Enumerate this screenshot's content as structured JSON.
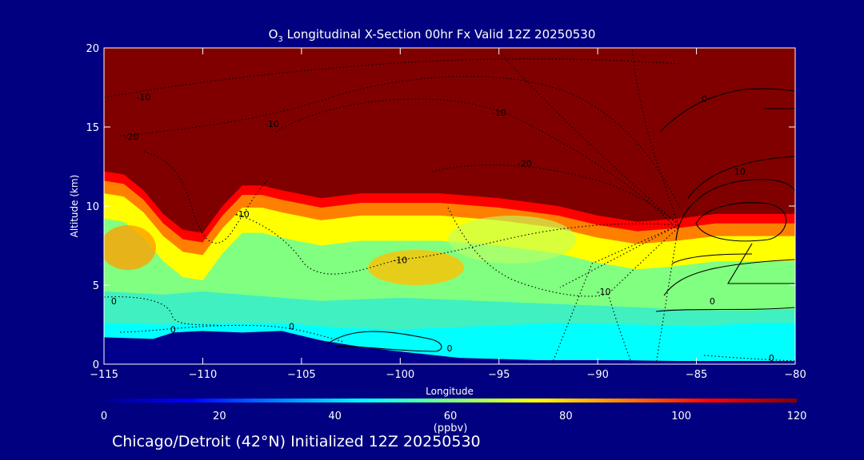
{
  "title": {
    "prefix": "O",
    "sub": "3",
    "rest": " Longitudinal X-Section 00hr  Fx Valid 12Z 20250530"
  },
  "footer": "Chicago/Detroit (42°N) Initialized 12Z 20250530",
  "chart_data": {
    "type": "heatmap",
    "xlabel": "Longitude",
    "ylabel": "Altitude (km)",
    "xlim": [
      -115,
      -80
    ],
    "ylim": [
      0,
      20
    ],
    "xticks": [
      -115,
      -110,
      -105,
      -100,
      -95,
      -90,
      -85,
      -80
    ],
    "xtick_labels": [
      "-115",
      "-110",
      "-105",
      "-100",
      "-95",
      "-90",
      "-85",
      "-80"
    ],
    "yticks": [
      0,
      5,
      10,
      15,
      20
    ],
    "ytick_labels": [
      "0",
      "5",
      "10",
      "15",
      "20"
    ],
    "colorbar": {
      "label": "(ppbv)",
      "min": 0,
      "max": 120,
      "ticks": [
        0,
        20,
        40,
        60,
        80,
        100,
        120
      ],
      "tick_labels": [
        "0",
        "20",
        "40",
        "60",
        "80",
        "100",
        "120"
      ],
      "stops": [
        "#00008c",
        "#0000ff",
        "#0080ff",
        "#00ffff",
        "#80ff80",
        "#ffff00",
        "#ff8000",
        "#ff0000",
        "#800000"
      ]
    },
    "terrain": {
      "lon": [
        -115,
        -112.5,
        -111.5,
        -110,
        -108,
        -106,
        -104,
        -102,
        -100,
        -97,
        -93,
        -89,
        -86,
        -83,
        -80
      ],
      "alt": [
        1.7,
        1.6,
        2.0,
        2.1,
        2.0,
        2.1,
        1.5,
        1.1,
        0.8,
        0.4,
        0.25,
        0.25,
        0.2,
        0.2,
        0.2
      ]
    },
    "tropopause_km": {
      "lon": [
        -115,
        -114,
        -113,
        -112,
        -111,
        -110,
        -109,
        -108,
        -107,
        -106,
        -104,
        -102,
        -100,
        -98,
        -95,
        -92,
        -90,
        -88,
        -86,
        -84,
        -82,
        -80
      ],
      "alt": [
        12.2,
        12.0,
        11.0,
        9.5,
        8.5,
        8.3,
        10.0,
        11.3,
        11.3,
        11.0,
        10.5,
        10.8,
        10.8,
        10.8,
        10.5,
        10.0,
        9.4,
        9.0,
        9.2,
        9.5,
        9.5,
        9.5
      ]
    },
    "contours": {
      "style": "dotted = negative, solid = non-negative",
      "labels": [
        {
          "lon": -113.0,
          "alt": 16.7,
          "text": "-10"
        },
        {
          "lon": -113.6,
          "alt": 14.2,
          "text": "-20"
        },
        {
          "lon": -106.5,
          "alt": 15.0,
          "text": "-10"
        },
        {
          "lon": -95.0,
          "alt": 15.7,
          "text": "-10"
        },
        {
          "lon": -93.7,
          "alt": 12.5,
          "text": "-20"
        },
        {
          "lon": -108.0,
          "alt": 9.3,
          "text": "-10"
        },
        {
          "lon": -100.0,
          "alt": 6.4,
          "text": "-10"
        },
        {
          "lon": -89.7,
          "alt": 4.4,
          "text": "-10"
        },
        {
          "lon": -114.5,
          "alt": 3.8,
          "text": "0"
        },
        {
          "lon": -111.5,
          "alt": 2.0,
          "text": "0"
        },
        {
          "lon": -105.5,
          "alt": 2.2,
          "text": "0"
        },
        {
          "lon": -97.5,
          "alt": 0.8,
          "text": "0"
        },
        {
          "lon": -84.2,
          "alt": 3.8,
          "text": "0"
        },
        {
          "lon": -81.2,
          "alt": 0.2,
          "text": "0"
        },
        {
          "lon": -84.6,
          "alt": 16.6,
          "text": "0"
        },
        {
          "lon": -82.8,
          "alt": 12.0,
          "text": "10"
        }
      ]
    }
  }
}
